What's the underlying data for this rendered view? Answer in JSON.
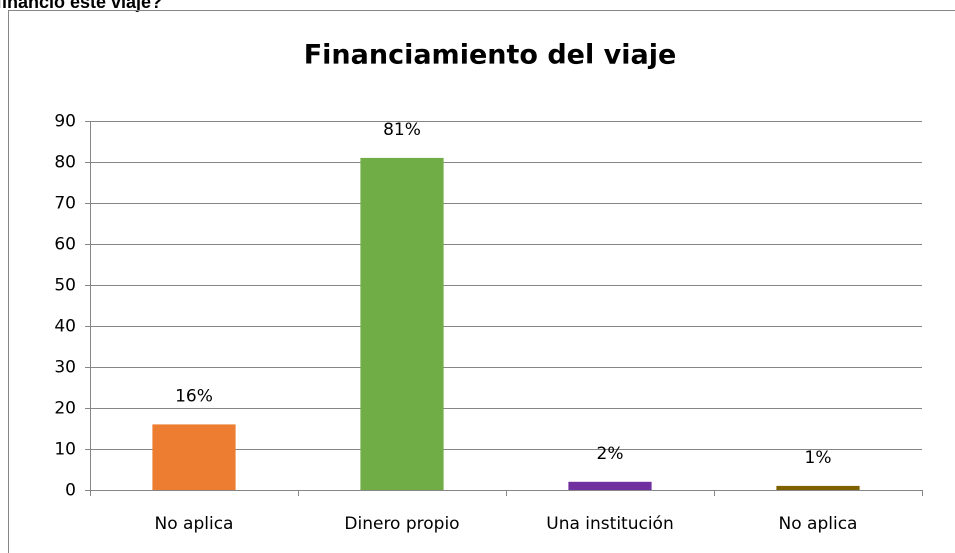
{
  "page_heading": "financió este viaje?",
  "chart_data": {
    "type": "bar",
    "title": "Financiamiento del viaje",
    "categories": [
      "No aplica",
      "Dinero propio",
      "Una institución",
      "No aplica"
    ],
    "values": [
      16,
      81,
      2,
      1
    ],
    "value_labels": [
      "16%",
      "81%",
      "2%",
      "1%"
    ],
    "colors": [
      "#ed7d31",
      "#70ad47",
      "#7030a0",
      "#7f6000"
    ],
    "ylim": [
      0,
      90
    ],
    "yticks": [
      0,
      10,
      20,
      30,
      40,
      50,
      60,
      70,
      80,
      90
    ],
    "grid": true
  }
}
